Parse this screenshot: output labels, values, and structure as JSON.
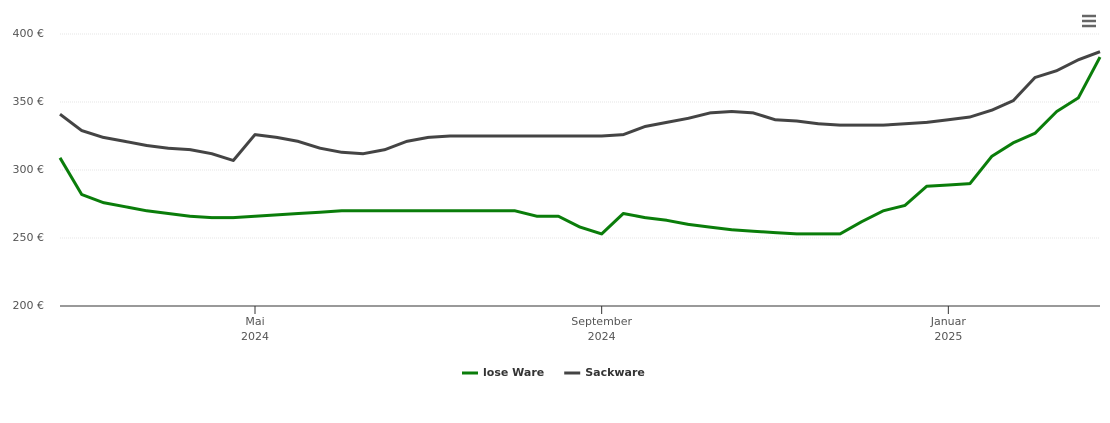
{
  "chart_data": {
    "type": "line",
    "categories": [
      null,
      null,
      null,
      null,
      null,
      null,
      null,
      null,
      null,
      [
        "Mai",
        "2024"
      ],
      null,
      null,
      null,
      null,
      null,
      null,
      null,
      null,
      null,
      null,
      null,
      null,
      null,
      null,
      null,
      [
        "September",
        "2024"
      ],
      null,
      null,
      null,
      null,
      null,
      null,
      null,
      null,
      null,
      null,
      null,
      null,
      null,
      null,
      null,
      [
        "Januar",
        "2025"
      ],
      null,
      null,
      null,
      null,
      null,
      null,
      null
    ],
    "series": [
      {
        "name": "lose Ware",
        "color": "#0a7d0a",
        "values": [
          309,
          282,
          276,
          273,
          270,
          268,
          266,
          265,
          265,
          266,
          267,
          268,
          269,
          270,
          270,
          270,
          270,
          270,
          270,
          270,
          270,
          270,
          266,
          266,
          258,
          253,
          268,
          265,
          263,
          260,
          258,
          256,
          255,
          254,
          253,
          253,
          253,
          262,
          270,
          274,
          288,
          289,
          290,
          310,
          320,
          327,
          343,
          353,
          383
        ]
      },
      {
        "name": "Sackware",
        "color": "#444444",
        "values": [
          341,
          329,
          324,
          321,
          318,
          316,
          315,
          312,
          307,
          326,
          324,
          321,
          316,
          313,
          312,
          315,
          321,
          324,
          325,
          325,
          325,
          325,
          325,
          325,
          325,
          325,
          326,
          332,
          335,
          338,
          342,
          343,
          342,
          337,
          336,
          334,
          333,
          333,
          333,
          334,
          335,
          337,
          339,
          344,
          351,
          368,
          373,
          381,
          387
        ]
      }
    ],
    "ylim": [
      200,
      400
    ],
    "yticks": [
      {
        "value": 200,
        "label": "200 €"
      },
      {
        "value": 250,
        "label": "250 €"
      },
      {
        "value": 300,
        "label": "300 €"
      },
      {
        "value": 350,
        "label": "350 €"
      },
      {
        "value": 400,
        "label": "400 €"
      }
    ],
    "grid": true,
    "legend": "bottom"
  }
}
